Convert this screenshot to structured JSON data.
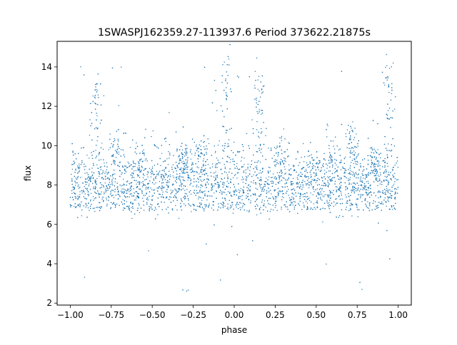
{
  "chart_data": {
    "type": "scatter",
    "title": "1SWASPJ162359.27-113937.6 Period 373622.21875s",
    "xlabel": "phase",
    "ylabel": "flux",
    "xlim": [
      -1.08,
      1.08
    ],
    "ylim": [
      1.9,
      15.3
    ],
    "x_ticks": [
      -1.0,
      -0.75,
      -0.5,
      -0.25,
      0.0,
      0.25,
      0.5,
      0.75,
      1.0
    ],
    "x_tick_labels": [
      "−1.00",
      "−0.75",
      "−0.50",
      "−0.25",
      "0.00",
      "0.25",
      "0.50",
      "0.75",
      "1.00"
    ],
    "y_ticks": [
      2,
      4,
      6,
      8,
      10,
      12,
      14
    ],
    "y_tick_labels": [
      "2",
      "4",
      "6",
      "8",
      "10",
      "12",
      "14"
    ],
    "grid": false,
    "legend": "none",
    "marker_color": "#1f77b4",
    "series": [
      {
        "phase_range": [
          -1.0,
          1.0
        ],
        "baseline_flux": 7.8,
        "baseline_spread": 1.0,
        "flare_phases": [
          -0.84,
          -0.72,
          -0.58,
          -0.31,
          -0.2,
          -0.05,
          0.15,
          0.28,
          0.48,
          0.6,
          0.72,
          0.85,
          0.94
        ],
        "flare_peak_flux": [
          13.0,
          10.5,
          9.0,
          9.5,
          10.0,
          14.5,
          13.5,
          10.0,
          9.0,
          10.5,
          10.8,
          9.5,
          14.0
        ]
      }
    ]
  }
}
